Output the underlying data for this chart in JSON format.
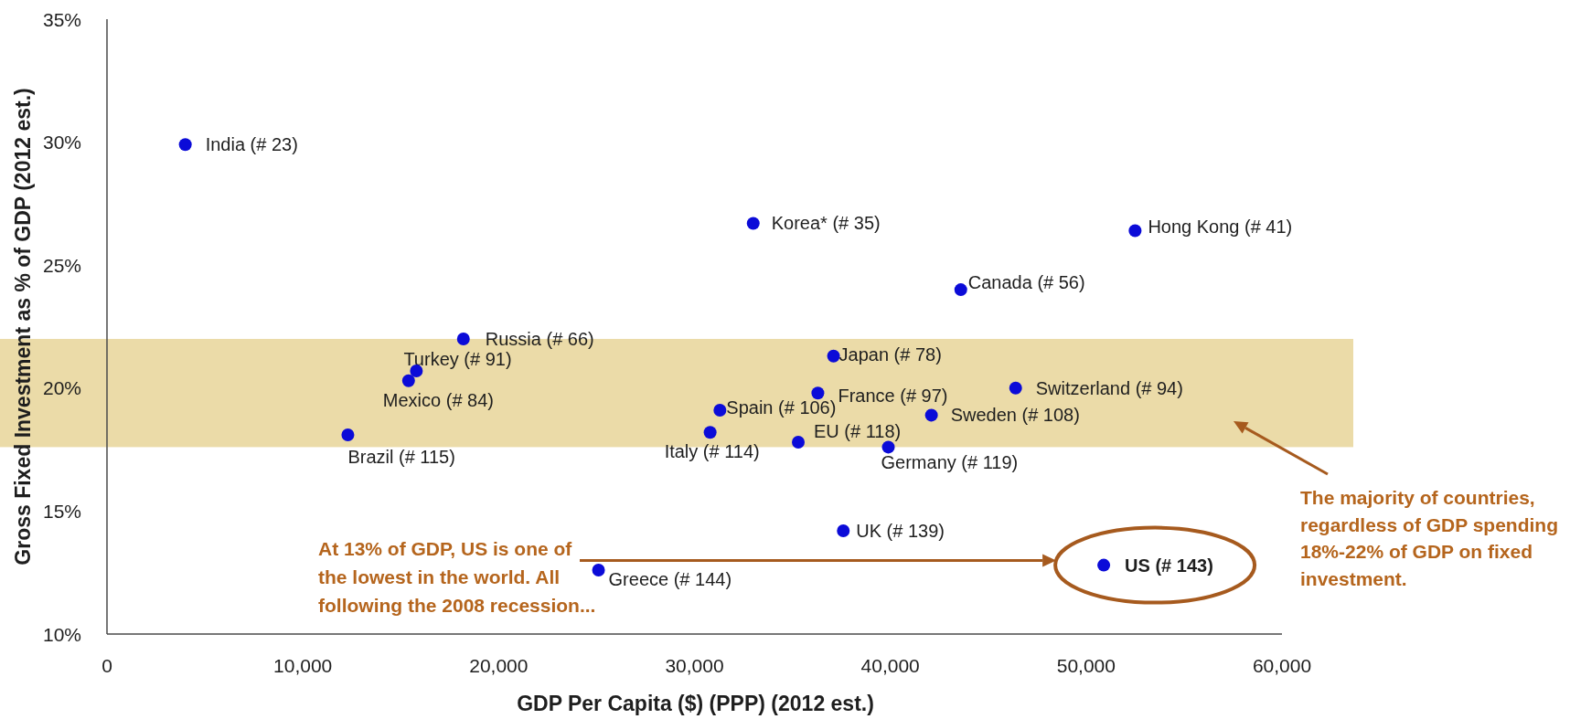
{
  "chart_data": {
    "type": "scatter",
    "xlabel": "GDP Per Capita ($) (PPP) (2012 est.)",
    "ylabel": "Gross Fixed Investment as % of GDP (2012 est.)",
    "x": [
      4000,
      33000,
      52500,
      43600,
      18200,
      37100,
      15800,
      15400,
      36300,
      46400,
      31300,
      42100,
      30800,
      12300,
      35300,
      39900,
      37600,
      50900,
      25100
    ],
    "series": [
      {
        "color": "#0b0bd8",
        "values": [
          29.9,
          26.7,
          26.4,
          24.0,
          22.0,
          21.3,
          20.7,
          20.3,
          19.8,
          20.0,
          19.1,
          18.9,
          18.2,
          18.1,
          17.8,
          17.6,
          14.2,
          12.8,
          12.6
        ]
      }
    ],
    "marker": "circle",
    "xlim": [
      0,
      60000
    ],
    "ylim": [
      10,
      35
    ],
    "xticks": [
      0,
      {
        "value": 10000,
        "label": "10,000"
      },
      {
        "value": 20000,
        "label": "20,000"
      },
      {
        "value": 30000,
        "label": "30,000"
      },
      {
        "value": 40000,
        "label": "40,000"
      },
      {
        "value": 50000,
        "label": "50,000"
      },
      {
        "value": 60000,
        "label": "60,000"
      }
    ],
    "yticks": [
      {
        "value": 10,
        "label": "10%"
      },
      {
        "value": 15,
        "label": "15%"
      },
      {
        "value": 20,
        "label": "20%"
      },
      {
        "value": 25,
        "label": "25%"
      },
      {
        "value": 30,
        "label": "30%"
      },
      {
        "value": 35,
        "label": "35%"
      }
    ],
    "bands": [
      {
        "axis": "y",
        "from": 17.6,
        "to": 22.0,
        "color": "#ebdba8",
        "label": "The majority of countries, regardless of GDP spending 18%-22% of GDP on fixed investment."
      }
    ],
    "annotations": [
      {
        "text": "India (# 23)",
        "x": 4000,
        "y": 29.9
      },
      {
        "text": "Korea* (# 35)",
        "x": 33000,
        "y": 26.7
      },
      {
        "text": "Hong Kong (# 41)",
        "x": 52500,
        "y": 26.4
      },
      {
        "text": "Canada (# 56)",
        "x": 43600,
        "y": 24.0
      },
      {
        "text": "Russia (# 66)",
        "x": 18200,
        "y": 22.0
      },
      {
        "text": "Japan (# 78)",
        "x": 37100,
        "y": 21.3
      },
      {
        "text": "Turkey (# 91)",
        "x": 15800,
        "y": 20.7
      },
      {
        "text": "Mexico (# 84)",
        "x": 15400,
        "y": 20.3
      },
      {
        "text": "France (# 97)",
        "x": 36300,
        "y": 19.8
      },
      {
        "text": "Switzerland (# 94)",
        "x": 46400,
        "y": 20.0
      },
      {
        "text": "Spain (# 106)",
        "x": 31300,
        "y": 19.1
      },
      {
        "text": "Sweden (# 108)",
        "x": 42100,
        "y": 18.9
      },
      {
        "text": "Italy (# 114)",
        "x": 30800,
        "y": 18.2
      },
      {
        "text": "Brazil (# 115)",
        "x": 12300,
        "y": 18.1
      },
      {
        "text": "EU (# 118)",
        "x": 35300,
        "y": 17.8
      },
      {
        "text": "Germany (# 119)",
        "x": 39900,
        "y": 17.6
      },
      {
        "text": "UK (# 139)",
        "x": 37600,
        "y": 14.2
      },
      {
        "text": "US (# 143)",
        "x": 50900,
        "y": 12.8
      },
      {
        "text": "Greece (# 144)",
        "x": 25100,
        "y": 12.6
      },
      "At 13% of GDP, US is one of the lowest in the world. All following the 2008 recession..."
    ]
  }
}
